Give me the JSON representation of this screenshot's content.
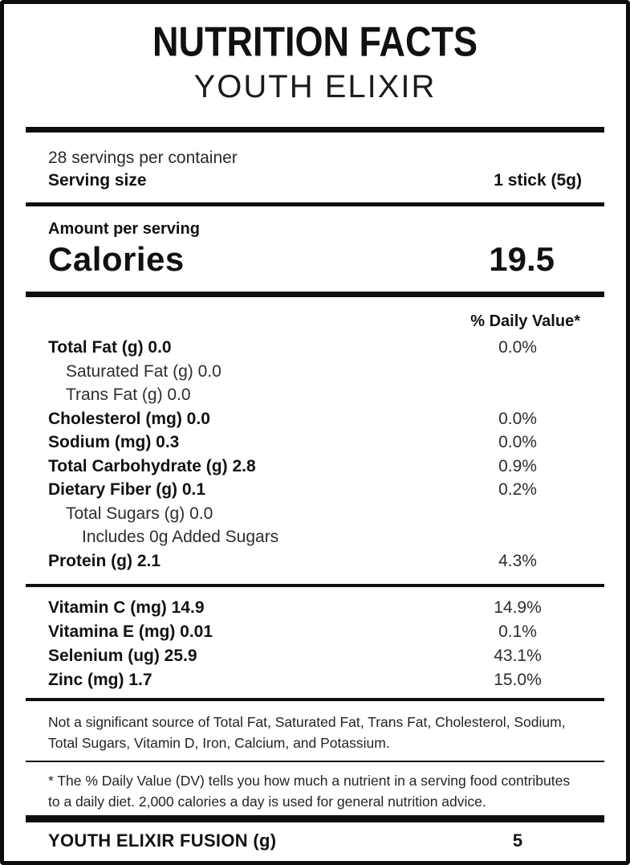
{
  "header": {
    "title": "NUTRITION FACTS",
    "subtitle": "YOUTH ELIXIR"
  },
  "serving": {
    "servings_per_container": "28 servings per container",
    "serving_size_label": "Serving size",
    "serving_size_value": "1 stick (5g)"
  },
  "calories": {
    "amount_per_serving_label": "Amount per serving",
    "label": "Calories",
    "value": "19.5"
  },
  "daily_value_header": "% Daily Value*",
  "nutrients": [
    {
      "label": "Total Fat (g) 0.0",
      "dv": "0.0%",
      "bold": true,
      "indent": 0
    },
    {
      "label": "Saturated Fat (g) 0.0",
      "dv": "",
      "bold": false,
      "indent": 1
    },
    {
      "label": "Trans Fat (g) 0.0",
      "dv": "",
      "bold": false,
      "indent": 1
    },
    {
      "label": "Cholesterol (mg) 0.0",
      "dv": "0.0%",
      "bold": true,
      "indent": 0
    },
    {
      "label": "Sodium (mg) 0.3",
      "dv": "0.0%",
      "bold": true,
      "indent": 0
    },
    {
      "label": "Total Carbohydrate (g) 2.8",
      "dv": "0.9%",
      "bold": true,
      "indent": 0
    },
    {
      "label": "Dietary Fiber (g) 0.1",
      "dv": "0.2%",
      "bold": true,
      "indent": 0
    },
    {
      "label": "Total Sugars (g) 0.0",
      "dv": "",
      "bold": false,
      "indent": 1
    },
    {
      "label": "Includes 0g Added Sugars",
      "dv": "",
      "bold": false,
      "indent": 2
    },
    {
      "label": "Protein (g) 2.1",
      "dv": "4.3%",
      "bold": true,
      "indent": 0
    }
  ],
  "micronutrients": [
    {
      "label": "Vitamin C (mg) 14.9",
      "dv": "14.9%"
    },
    {
      "label": "Vitamina E (mg) 0.01",
      "dv": "0.1%"
    },
    {
      "label": "Selenium (ug) 25.9",
      "dv": "43.1%"
    },
    {
      "label": "Zinc (mg) 1.7",
      "dv": "15.0%"
    }
  ],
  "notes": {
    "not_significant": "Not a significant source of Total Fat, Saturated Fat, Trans Fat, Cholesterol, Sodium, Total Sugars, Vitamin D, Iron, Calcium, and Potassium.",
    "daily_value_footnote": "* The % Daily Value (DV) tells you how much a nutrient in a serving food contributes to a daily diet. 2,000 calories a day is used for general nutrition advice."
  },
  "footer": {
    "label": "YOUTH ELIXIR FUSION (g)",
    "value": "5"
  },
  "colors": {
    "text": "#141414",
    "border": "#0d0d0d",
    "background": "#ffffff"
  }
}
